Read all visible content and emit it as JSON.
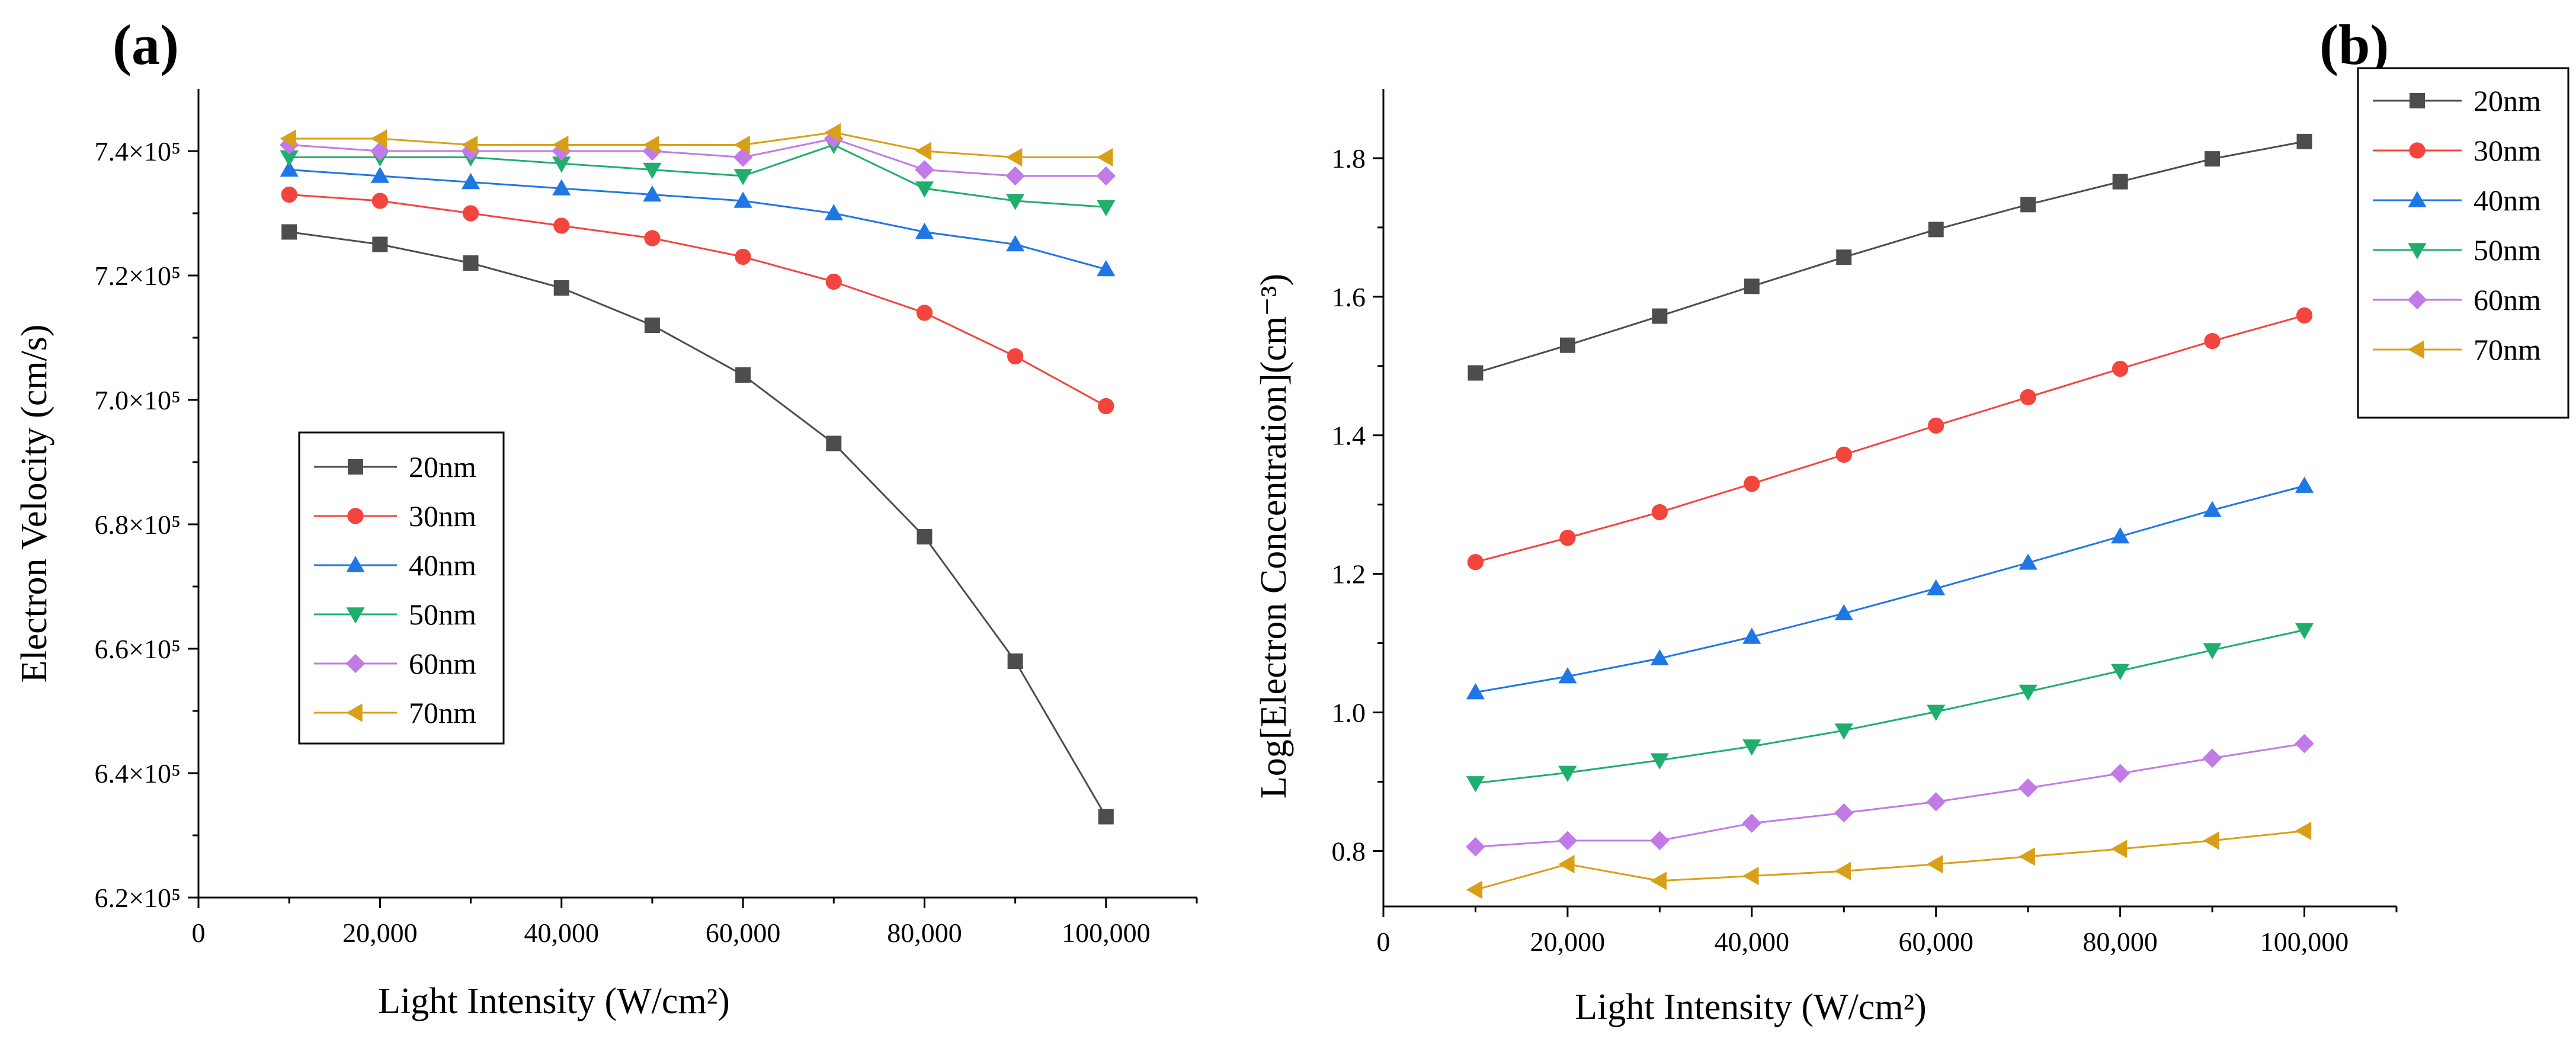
{
  "chart_data": [
    {
      "panel": "(a)",
      "type": "line",
      "xlabel": "Light Intensity (W/cm²)",
      "ylabel": "Electron Velocity (cm/s)",
      "xlim": [
        0,
        110000
      ],
      "ylim": [
        620000,
        750000
      ],
      "xticks": [
        0,
        20000,
        40000,
        60000,
        80000,
        100000
      ],
      "xtick_labels": [
        "0",
        "20,000",
        "40,000",
        "60,000",
        "80,000",
        "100,000"
      ],
      "yticks": [
        620000,
        640000,
        660000,
        680000,
        700000,
        720000,
        740000
      ],
      "ytick_labels": [
        "6.2×10⁵",
        "6.4×10⁵",
        "6.6×10⁵",
        "6.8×10⁵",
        "7.0×10⁵",
        "7.2×10⁵",
        "7.4×10⁵"
      ],
      "legend_position": "middle-left",
      "x": [
        10000,
        20000,
        30000,
        40000,
        50000,
        60000,
        70000,
        80000,
        90000,
        100000
      ],
      "series": [
        {
          "name": "20nm",
          "marker": "square",
          "color": "#4d4d4d",
          "values": [
            727000,
            725000,
            722000,
            718000,
            712000,
            704000,
            693000,
            678000,
            658000,
            633000
          ]
        },
        {
          "name": "30nm",
          "marker": "circle",
          "color": "#f2453d",
          "values": [
            733000,
            732000,
            730000,
            728000,
            726000,
            723000,
            719000,
            714000,
            707000,
            699000
          ]
        },
        {
          "name": "40nm",
          "marker": "triangle-up",
          "color": "#1f77e6",
          "values": [
            737000,
            736000,
            735000,
            734000,
            733000,
            732000,
            730000,
            727000,
            725000,
            721000
          ]
        },
        {
          "name": "50nm",
          "marker": "triangle-down",
          "color": "#1fae6e",
          "values": [
            739000,
            739000,
            739000,
            738000,
            737000,
            736000,
            741000,
            734000,
            732000,
            731000
          ]
        },
        {
          "name": "60nm",
          "marker": "diamond",
          "color": "#c27ae6",
          "values": [
            741000,
            740000,
            740000,
            740000,
            740000,
            739000,
            742000,
            737000,
            736000,
            736000
          ]
        },
        {
          "name": "70nm",
          "marker": "triangle-left",
          "color": "#d9a017",
          "values": [
            742000,
            742000,
            741000,
            741000,
            741000,
            741000,
            743000,
            740000,
            739000,
            739000
          ]
        }
      ]
    },
    {
      "panel": "(b)",
      "type": "line",
      "xlabel": "Light Intensity (W/cm²)",
      "ylabel": "Log[Electron Concentration](cm⁻³)",
      "xlim": [
        0,
        110000
      ],
      "ylim": [
        0.72,
        1.9
      ],
      "xticks": [
        0,
        20000,
        40000,
        60000,
        80000,
        100000
      ],
      "xtick_labels": [
        "0",
        "20,000",
        "40,000",
        "60,000",
        "80,000",
        "100,000"
      ],
      "yticks": [
        0.8,
        1.0,
        1.2,
        1.4,
        1.6,
        1.8
      ],
      "ytick_labels": [
        "0.8",
        "1.0",
        "1.2",
        "1.4",
        "1.6",
        "1.8"
      ],
      "legend_position": "top-right",
      "x": [
        10000,
        20000,
        30000,
        40000,
        50000,
        60000,
        70000,
        80000,
        90000,
        100000
      ],
      "series": [
        {
          "name": "20nm",
          "marker": "square",
          "color": "#4d4d4d",
          "values": [
            1.49,
            1.53,
            1.572,
            1.615,
            1.657,
            1.697,
            1.733,
            1.766,
            1.799,
            1.824
          ]
        },
        {
          "name": "30nm",
          "marker": "circle",
          "color": "#f2453d",
          "values": [
            1.217,
            1.252,
            1.289,
            1.33,
            1.372,
            1.414,
            1.455,
            1.496,
            1.536,
            1.573
          ]
        },
        {
          "name": "40nm",
          "marker": "triangle-up",
          "color": "#1f77e6",
          "values": [
            1.029,
            1.052,
            1.078,
            1.109,
            1.143,
            1.179,
            1.216,
            1.254,
            1.292,
            1.327
          ]
        },
        {
          "name": "50nm",
          "marker": "triangle-down",
          "color": "#1fae6e",
          "values": [
            0.898,
            0.913,
            0.931,
            0.951,
            0.974,
            1.001,
            1.03,
            1.06,
            1.09,
            1.119
          ]
        },
        {
          "name": "60nm",
          "marker": "diamond",
          "color": "#c27ae6",
          "values": [
            0.806,
            0.815,
            0.815,
            0.84,
            0.855,
            0.871,
            0.891,
            0.912,
            0.934,
            0.955
          ]
        },
        {
          "name": "70nm",
          "marker": "triangle-left",
          "color": "#d9a017",
          "values": [
            0.744,
            0.781,
            0.757,
            0.764,
            0.771,
            0.781,
            0.792,
            0.803,
            0.815,
            0.829
          ]
        }
      ]
    }
  ]
}
